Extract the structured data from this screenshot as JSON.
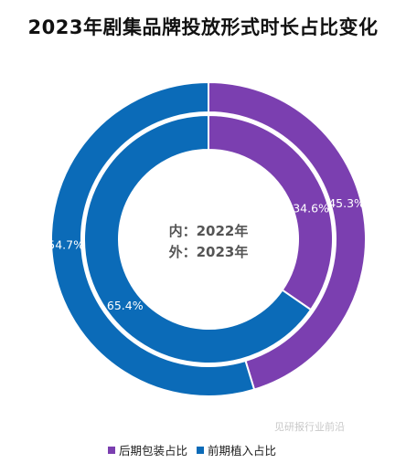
{
  "chart_data": {
    "type": "pie",
    "title": "2023年剧集品牌投放形式时长占比变化",
    "center_text": [
      "内：2022年",
      "外：2023年"
    ],
    "categories": [
      "后期包装占比",
      "前期植入占比"
    ],
    "series": [
      {
        "name": "2022年",
        "ring": "inner",
        "values": [
          34.6,
          65.4
        ],
        "labels": [
          "34.6%",
          "65.4%"
        ]
      },
      {
        "name": "2023年",
        "ring": "outer",
        "values": [
          45.3,
          54.7
        ],
        "labels": [
          "45.3%",
          "54.7%"
        ]
      }
    ],
    "colors": [
      "#7b3fb0",
      "#0b6bb8"
    ],
    "legend_position": "bottom"
  },
  "watermark": "见研报行业前沿"
}
